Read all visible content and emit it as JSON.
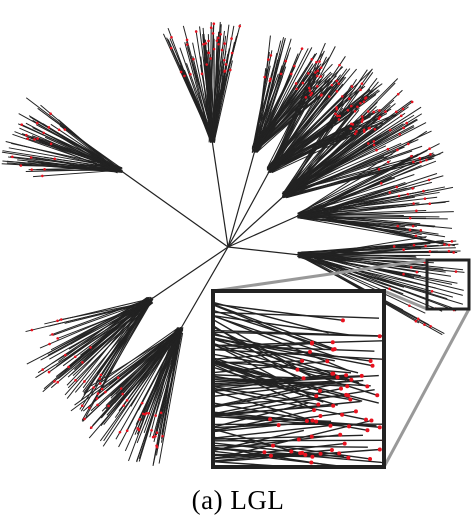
{
  "figure": {
    "caption": "(a)  LGL",
    "colors": {
      "edge": "#222222",
      "node": "#e8121f",
      "inset_frame": "#222222",
      "connector": "#999999",
      "background": "#ffffff"
    },
    "cluster_count": 10,
    "has_zoom_inset": true
  }
}
